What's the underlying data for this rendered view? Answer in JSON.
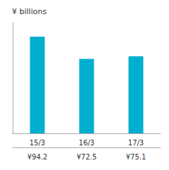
{
  "chart_data": {
    "type": "bar",
    "ylabel": "¥ billions",
    "categories": [
      "15/3",
      "16/3",
      "17/3"
    ],
    "values": [
      94.2,
      72.5,
      75.1
    ],
    "value_labels": [
      "¥94.2",
      "¥72.5",
      "¥75.1"
    ],
    "data_labels": true,
    "color": "#00AECF",
    "ylim": [
      0,
      108
    ],
    "grid": false,
    "tick_labels": "x"
  }
}
